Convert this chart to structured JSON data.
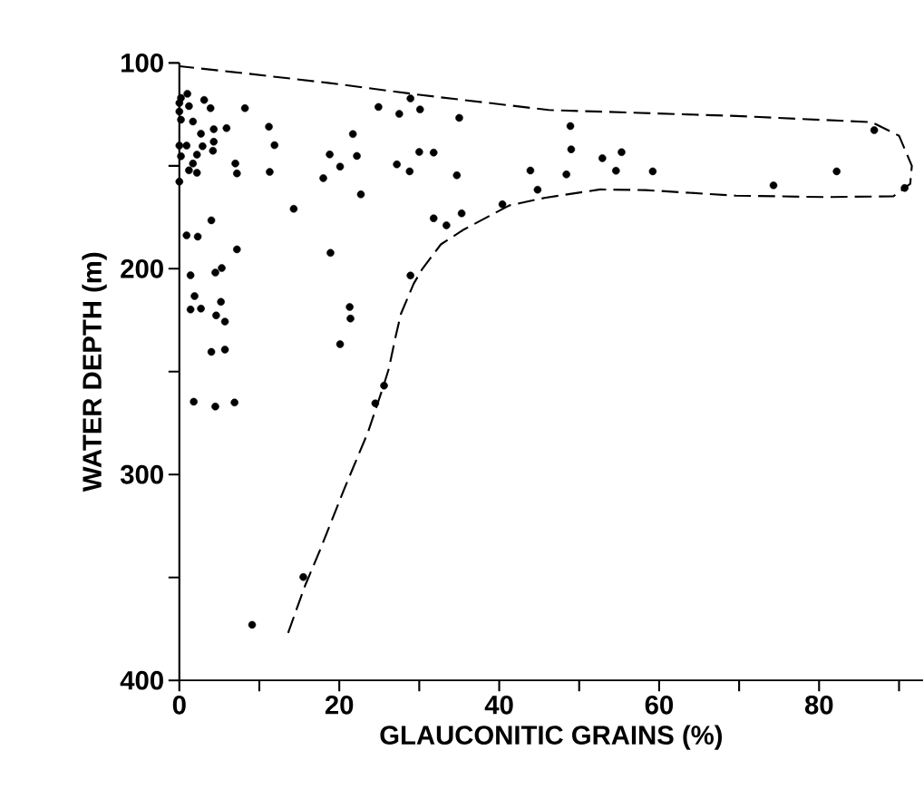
{
  "chart_data": {
    "type": "scatter",
    "xlabel": "GLAUCONITIC GRAINS (%)",
    "ylabel": "WATER DEPTH (m)",
    "xlim": [
      0,
      93
    ],
    "ylim": [
      400,
      100
    ],
    "xticks": [
      0,
      {
        "value": 10,
        "label": null
      },
      20,
      {
        "value": 30,
        "label": null
      },
      40,
      {
        "value": 50,
        "label": null
      },
      60,
      {
        "value": 70,
        "label": null
      },
      80,
      {
        "value": 90,
        "label": null
      }
    ],
    "yticks": [
      100,
      {
        "value": 150,
        "label": null
      },
      200,
      {
        "value": 250,
        "label": null
      },
      300,
      {
        "value": 350,
        "label": null
      },
      400
    ],
    "grid": false,
    "series": [
      {
        "marker": "circle",
        "color": "#000000",
        "x": [
          1.0,
          0.2,
          0,
          3.1,
          1.2,
          3.9,
          8.2,
          0,
          0.2,
          1.7,
          5.9,
          4.3,
          11.2,
          2.7,
          11.9,
          0,
          0.9,
          2.9,
          4.3,
          4.2,
          0.2,
          2.2,
          18.8,
          7.0,
          1.7,
          20.1,
          1.2,
          2.2,
          7.2,
          11.3,
          18.0,
          0,
          14.3,
          4.0,
          0.9,
          2.3,
          7.2,
          18.9,
          5.3,
          4.5,
          1.4,
          1.9,
          5.2,
          1.4,
          2.7,
          4.6,
          5.7,
          4.0,
          5.7,
          1.8,
          4.5,
          6.9,
          28.9,
          24.9,
          27.5,
          30.1,
          35.0,
          21.7,
          22.2,
          22.7,
          27.2,
          28.8,
          30.0,
          31.8,
          34.7,
          43.9,
          44.8,
          31.8,
          33.4,
          35.3,
          40.4,
          28.9,
          21.3,
          21.4,
          20.1,
          25.6,
          24.5,
          15.5,
          9.1,
          48.9,
          49.0,
          52.9,
          55.3,
          48.4,
          54.6,
          59.2,
          74.3,
          82.2,
          86.9,
          90.7
        ],
        "values": [
          115,
          117,
          119.5,
          118,
          121,
          122,
          122,
          123.6,
          127.6,
          128.5,
          131.7,
          132.2,
          131,
          134.4,
          140,
          140.2,
          140.2,
          140.5,
          138.3,
          142.7,
          145.4,
          144.6,
          144.5,
          148.9,
          148.9,
          150.4,
          152.2,
          153.4,
          153.7,
          153,
          156,
          157.7,
          170.9,
          176.5,
          183.8,
          184.4,
          190.6,
          192.3,
          199.7,
          201.9,
          203.2,
          213.3,
          216.1,
          219.8,
          219.4,
          222.7,
          225.7,
          240.4,
          239.3,
          264.6,
          267,
          265,
          117.3,
          121.4,
          124.8,
          122.6,
          126.7,
          134.6,
          145.2,
          163.9,
          149.3,
          152.7,
          143.3,
          143.6,
          154.6,
          152.3,
          161.6,
          175.5,
          178.9,
          173.1,
          168.7,
          203.3,
          218.6,
          224.2,
          236.7,
          256.8,
          265.4,
          349.8,
          373,
          130.7,
          142,
          146.3,
          143.4,
          154.2,
          152.4,
          152.7,
          159.5,
          152.7,
          132.7,
          160.8
        ]
      },
      {
        "type": "line",
        "color": "#000000",
        "line_style": "dashed",
        "x": [
          13.6,
          15.7,
          17.6,
          20.6,
          23.6,
          25.5,
          26.2,
          27,
          27.7,
          29.3,
          30.4,
          32.7,
          35.6,
          41.3,
          45.8,
          52.6,
          58.3,
          69.6,
          81,
          89.3,
          91.4,
          91.6,
          90,
          86.6,
          69.6,
          46.2,
          30,
          18.6,
          8,
          0
        ],
        "values": [
          376.9,
          354.2,
          336.6,
          307.2,
          279.3,
          257.3,
          248.5,
          233.7,
          222,
          207.3,
          200,
          188.2,
          180.9,
          169.2,
          165.5,
          161.5,
          161.8,
          164.5,
          165.2,
          164.8,
          158.7,
          150,
          135.4,
          128.8,
          125.8,
          122.9,
          115.5,
          109.7,
          105,
          101.6
        ]
      }
    ]
  }
}
